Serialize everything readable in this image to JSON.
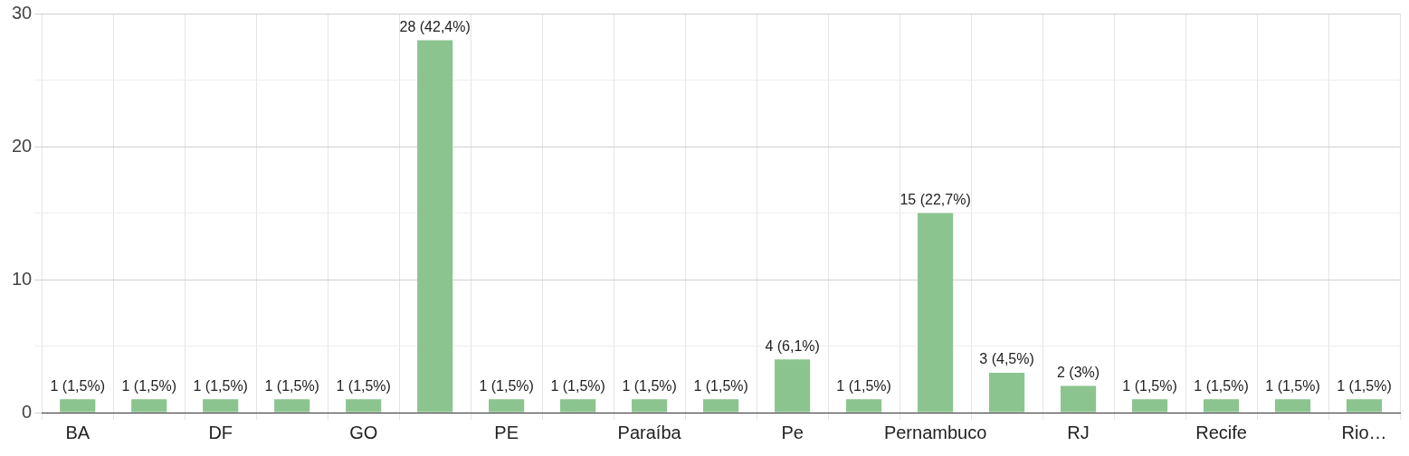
{
  "chart_data": {
    "type": "bar",
    "categories": [
      "BA",
      null,
      "DF",
      null,
      "GO",
      null,
      "PE",
      null,
      "Paraíba",
      null,
      "Pe",
      null,
      "Pernambuco",
      null,
      "RJ",
      null,
      "Recife",
      null,
      "Rio…"
    ],
    "values": [
      1,
      1,
      1,
      1,
      1,
      28,
      1,
      1,
      1,
      1,
      4,
      1,
      15,
      3,
      2,
      1,
      1,
      1,
      1
    ],
    "value_labels": [
      "1 (1,5%)",
      "1 (1,5%)",
      "1 (1,5%)",
      "1 (1,5%)",
      "1 (1,5%)",
      "28 (42,4%)",
      "1 (1,5%)",
      "1 (1,5%)",
      "1 (1,5%)",
      "1 (1,5%)",
      "4 (6,1%)",
      "1 (1,5%)",
      "15 (22,7%)",
      "3 (4,5%)",
      "2 (3%)",
      "1 (1,5%)",
      "1 (1,5%)",
      "1 (1,5%)",
      "1 (1,5%)"
    ],
    "color": "#8cc48f",
    "ylim": [
      0,
      30
    ],
    "yticks": [
      0,
      {
        "value": 5,
        "label": null
      },
      10,
      {
        "value": 15,
        "label": null
      },
      20,
      {
        "value": 25,
        "label": null
      },
      30
    ],
    "grid": true
  }
}
